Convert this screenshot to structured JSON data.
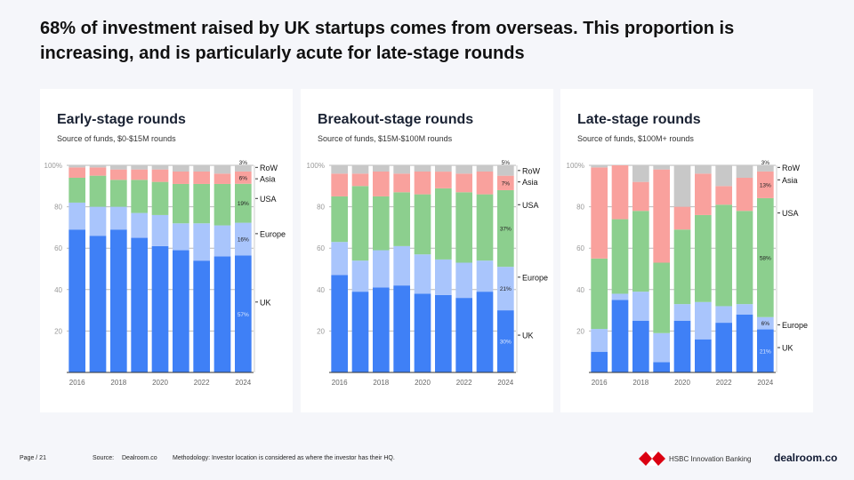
{
  "title": "68% of investment raised by UK startups comes from overseas. This proportion is increasing, and is particularly acute for late-stage rounds",
  "footer": {
    "page": "Page / 21",
    "source_label": "Source:",
    "source": "Dealroom.co",
    "methodology": "Methodology: Investor location is considered as where the investor has their HQ.",
    "hsbc": "HSBC Innovation Banking",
    "dealroom": "dealroom.co"
  },
  "colors": {
    "UK": "#3f80f6",
    "Europe": "#a9c5fc",
    "USA": "#8ccf8e",
    "Asia": "#f9a19d",
    "RoW": "#c8c8c8"
  },
  "chart_data": [
    {
      "type": "bar",
      "stacked": true,
      "title": "Early-stage rounds",
      "subtitle": "Source of funds, $0-$15M rounds",
      "categories": [
        "2016",
        "2017",
        "2018",
        "2019",
        "2020",
        "2021",
        "2022",
        "2023",
        "2024"
      ],
      "x_tick_labels": [
        "2016",
        "2018",
        "2020",
        "2022",
        "2024"
      ],
      "y_tick_labels": [
        "100%",
        "80",
        "60",
        "40",
        "20"
      ],
      "ylim": [
        0,
        100
      ],
      "series": [
        {
          "name": "UK",
          "values": [
            69,
            66,
            69,
            65,
            61,
            59,
            54,
            56,
            57
          ]
        },
        {
          "name": "Europe",
          "values": [
            13,
            14,
            11,
            12,
            15,
            13,
            18,
            15,
            16
          ]
        },
        {
          "name": "USA",
          "values": [
            12,
            15,
            13,
            16,
            16,
            19,
            19,
            20,
            19
          ]
        },
        {
          "name": "Asia",
          "values": [
            5,
            4,
            5,
            5,
            6,
            6,
            6,
            5,
            6
          ]
        },
        {
          "name": "RoW",
          "values": [
            1,
            1,
            2,
            2,
            2,
            3,
            3,
            4,
            3
          ]
        }
      ],
      "data_labels_2024": [
        "57%",
        "16%",
        "19%",
        "6%",
        "3%"
      ]
    },
    {
      "type": "bar",
      "stacked": true,
      "title": "Breakout-stage rounds",
      "subtitle": "Source of funds, $15M-$100M rounds",
      "categories": [
        "2016",
        "2017",
        "2018",
        "2019",
        "2020",
        "2021",
        "2022",
        "2023",
        "2024"
      ],
      "x_tick_labels": [
        "2016",
        "2018",
        "2020",
        "2022",
        "2024"
      ],
      "y_tick_labels": [
        "100%",
        "80",
        "60",
        "40",
        "20"
      ],
      "ylim": [
        0,
        100
      ],
      "series": [
        {
          "name": "UK",
          "values": [
            47,
            39,
            41,
            42,
            38,
            37,
            36,
            39,
            30
          ]
        },
        {
          "name": "Europe",
          "values": [
            16,
            15,
            18,
            19,
            19,
            17,
            17,
            15,
            21
          ]
        },
        {
          "name": "USA",
          "values": [
            22,
            36,
            26,
            26,
            29,
            34,
            34,
            32,
            37
          ]
        },
        {
          "name": "Asia",
          "values": [
            11,
            6,
            12,
            9,
            11,
            8,
            9,
            11,
            7
          ]
        },
        {
          "name": "RoW",
          "values": [
            4,
            4,
            3,
            4,
            3,
            3,
            4,
            3,
            5
          ]
        }
      ],
      "data_labels_2024": [
        "30%",
        "21%",
        "37%",
        "7%",
        "5%"
      ]
    },
    {
      "type": "bar",
      "stacked": true,
      "title": "Late-stage rounds",
      "subtitle": "Source of funds, $100M+ rounds",
      "categories": [
        "2016",
        "2017",
        "2018",
        "2019",
        "2020",
        "2021",
        "2022",
        "2023",
        "2024"
      ],
      "x_tick_labels": [
        "2016",
        "2018",
        "2020",
        "2022",
        "2024"
      ],
      "y_tick_labels": [
        "100%",
        "80",
        "60",
        "40",
        "20"
      ],
      "ylim": [
        0,
        100
      ],
      "series": [
        {
          "name": "UK",
          "values": [
            10,
            35,
            25,
            5,
            25,
            16,
            24,
            28,
            21
          ]
        },
        {
          "name": "Europe",
          "values": [
            11,
            3,
            14,
            14,
            8,
            18,
            8,
            5,
            6
          ]
        },
        {
          "name": "USA",
          "values": [
            34,
            36,
            39,
            34,
            36,
            42,
            49,
            45,
            58
          ]
        },
        {
          "name": "Asia",
          "values": [
            44,
            26,
            14,
            45,
            11,
            20,
            9,
            16,
            13
          ]
        },
        {
          "name": "RoW",
          "values": [
            1,
            0,
            8,
            2,
            20,
            4,
            10,
            6,
            3
          ]
        }
      ],
      "data_labels_2024": [
        "21%",
        "6%",
        "58%",
        "13%",
        "3%"
      ]
    }
  ]
}
